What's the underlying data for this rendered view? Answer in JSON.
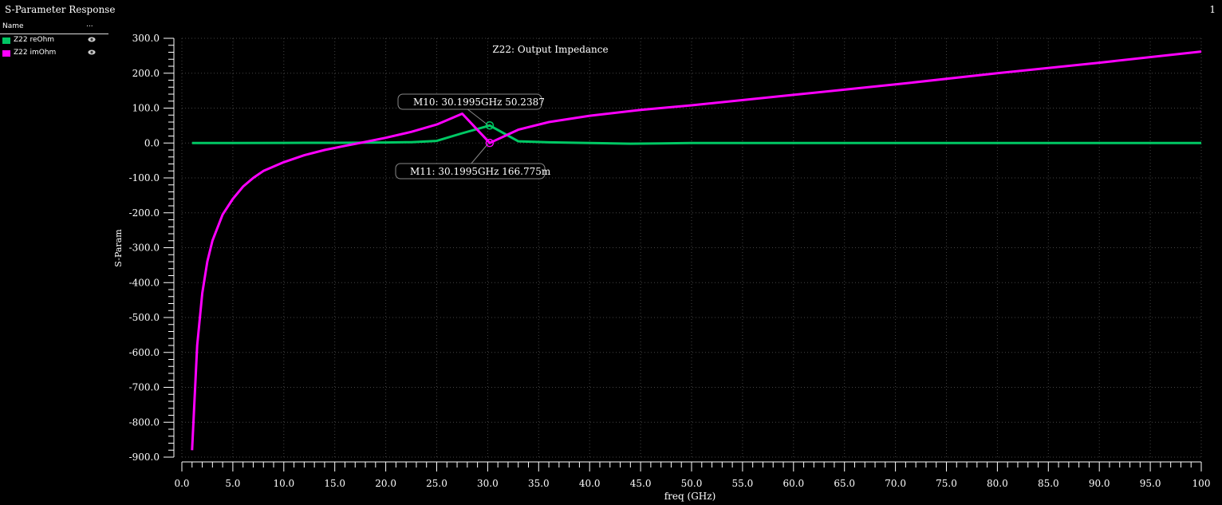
{
  "window": {
    "title": "S-Parameter Response",
    "number": "1"
  },
  "legend": {
    "header_name": "Name",
    "header_more": "...",
    "items": [
      {
        "label": "Z22 reOhm",
        "color": "#00c864",
        "icon": "eye-icon"
      },
      {
        "label": "Z22 imOhm",
        "color": "#ff00ff",
        "icon": "eye-icon"
      }
    ]
  },
  "markers": [
    {
      "text": "M10: 30.1995GHz 50.2387"
    },
    {
      "text": "M11: 30.1995GHz 166.775m"
    }
  ],
  "chart_data": {
    "type": "line",
    "title": "Z22: Output Impedance",
    "xlabel": "freq (GHz)",
    "ylabel": "S-Param",
    "xlim": [
      0,
      100
    ],
    "ylim": [
      -900,
      300
    ],
    "grid": true,
    "x_ticks": [
      "0.0",
      "5.0",
      "10.0",
      "15.0",
      "20.0",
      "25.0",
      "30.0",
      "35.0",
      "40.0",
      "45.0",
      "50.0",
      "55.0",
      "60.0",
      "65.0",
      "70.0",
      "75.0",
      "80.0",
      "85.0",
      "90.0",
      "95.0",
      "100"
    ],
    "y_ticks": [
      "300.0",
      "200.0",
      "100.0",
      "0.0",
      "-100.0",
      "-200.0",
      "-300.0",
      "-400.0",
      "-500.0",
      "-600.0",
      "-700.0",
      "-800.0",
      "-900.0"
    ],
    "series": [
      {
        "name": "Z22 reOhm",
        "color": "#00c864",
        "x": [
          1,
          5,
          10,
          15,
          20,
          22.5,
          25,
          27.5,
          30.2,
          33,
          36,
          40,
          44,
          47,
          50,
          60,
          70,
          80,
          90,
          100
        ],
        "y": [
          0,
          0,
          0.3,
          0.6,
          1.5,
          2.5,
          6,
          28,
          50.2,
          5,
          2,
          0,
          -2,
          -1,
          0,
          0,
          0,
          0,
          0,
          0
        ]
      },
      {
        "name": "Z22 imOhm",
        "color": "#ff00ff",
        "x": [
          1,
          1.5,
          2,
          2.5,
          3,
          4,
          5,
          6,
          7,
          8,
          10,
          12,
          14,
          16,
          18,
          20,
          22.5,
          25,
          27.5,
          30.2,
          33,
          36,
          40,
          45,
          50,
          60,
          70,
          80,
          90,
          100
        ],
        "y": [
          -880,
          -580,
          -430,
          -340,
          -280,
          -205,
          -160,
          -125,
          -100,
          -80,
          -55,
          -35,
          -20,
          -8,
          3,
          15,
          32,
          53,
          84,
          0.17,
          38,
          60,
          78,
          95,
          108,
          138,
          168,
          200,
          230,
          262
        ]
      }
    ],
    "marker_points": [
      {
        "series": "Z22 reOhm",
        "x": 30.1995,
        "y": 50.2387
      },
      {
        "series": "Z22 imOhm",
        "x": 30.1995,
        "y": 0.166775
      }
    ]
  }
}
